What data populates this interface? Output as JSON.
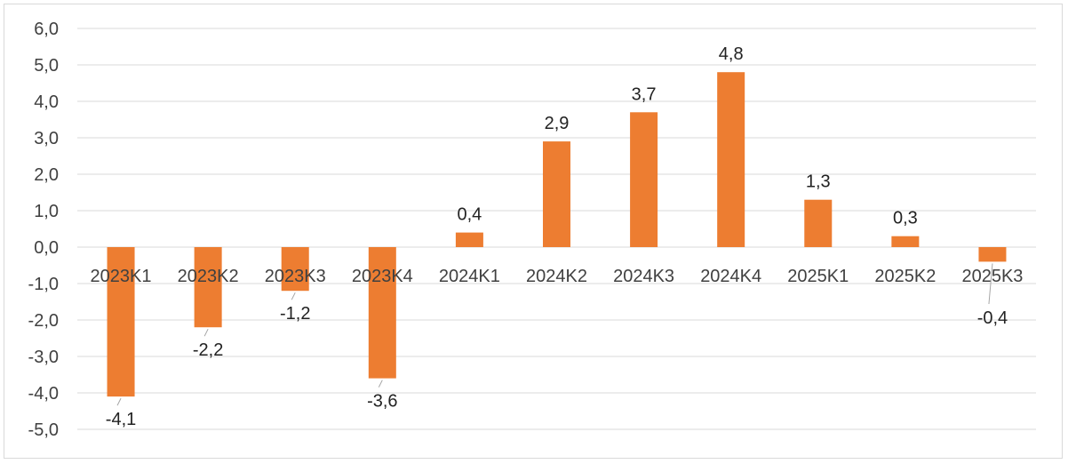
{
  "chart_data": {
    "type": "bar",
    "categories": [
      "2023K1",
      "2023K2",
      "2023K3",
      "2023K4",
      "2024K1",
      "2024K2",
      "2024K3",
      "2024K4",
      "2025K1",
      "2025K2",
      "2025K3"
    ],
    "values": [
      -4.1,
      -2.2,
      -1.2,
      -3.6,
      0.4,
      2.9,
      3.7,
      4.8,
      1.3,
      0.3,
      -0.4
    ],
    "value_labels": [
      "-4,1",
      "-2,2",
      "-1,2",
      "-3,6",
      "0,4",
      "2,9",
      "3,7",
      "4,8",
      "1,3",
      "0,3",
      "-0,4"
    ],
    "ylim": [
      -5,
      6
    ],
    "yticks": [
      6,
      5,
      4,
      3,
      2,
      1,
      0,
      -1,
      -2,
      -3,
      -4,
      -5
    ],
    "ytick_labels": [
      "6,0",
      "5,0",
      "4,0",
      "3,0",
      "2,0",
      "1,0",
      "0,0",
      "-1,0",
      "-2,0",
      "-3,0",
      "-4,0",
      "-5,0"
    ],
    "grid": true,
    "legend": "none",
    "bar_color": "#ED7D31",
    "title": "",
    "xlabel": "",
    "ylabel": ""
  }
}
